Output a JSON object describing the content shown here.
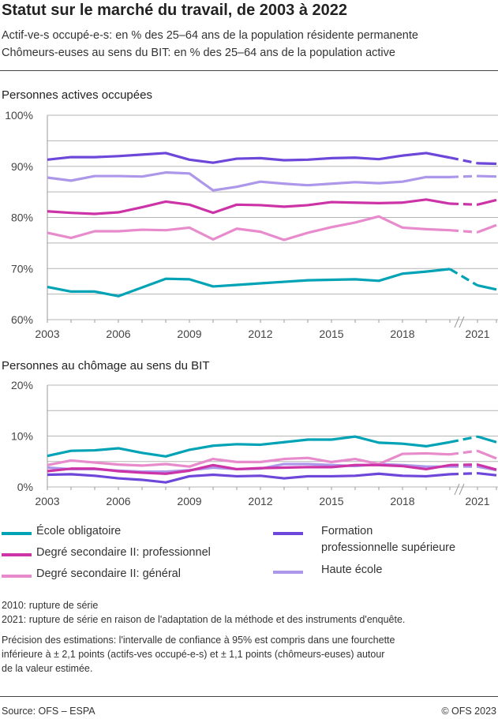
{
  "header": {
    "title": "Statut sur le marché du travail, de 2003 à 2022",
    "subtitle1": "Actif-ve-s occupé-e-s: en % des 25–64 ans de la population résidente permanente",
    "subtitle2": "Chômeurs-euses au sens du BIT: en % des 25–64 ans de la population active"
  },
  "legend": [
    {
      "label": "École obligatoire",
      "color": "#00a3b6"
    },
    {
      "label": "Degré secondaire II: professionnel",
      "color": "#cc33a6"
    },
    {
      "label": "Degré secondaire II: général",
      "color": "#e88bcd"
    },
    {
      "label": "Formation",
      "label2": "professionnelle supérieure",
      "color": "#6c47d9"
    },
    {
      "label": "Haute école",
      "color": "#ad97ea"
    }
  ],
  "notes": {
    "n1": "2010: rupture de série",
    "n2": "2021: rupture de série en raison de l'adaptation de la méthode et des instruments d'enquête.",
    "p1": "Précision des estimations: l'intervalle de confiance à 95% est compris dans une fourchette",
    "p2": "inférieure à ± 2,1 points (actifs-ves occupé-e-s) et ± 1,1 points (chômeurs-euses) autour",
    "p3": "de la valeur estimée."
  },
  "footer": {
    "source": "Source: OFS – ESPA",
    "copyright": "© OFS 2023"
  },
  "chart_data": [
    {
      "type": "line",
      "title": "Personnes actives occupées",
      "x": [
        2003,
        2004,
        2005,
        2006,
        2007,
        2008,
        2009,
        2010,
        2011,
        2012,
        2013,
        2014,
        2015,
        2016,
        2017,
        2018,
        2019,
        2020,
        2021,
        2022
      ],
      "xticks": [
        "2003",
        "2006",
        "2009",
        "2012",
        "2015",
        "2018",
        "2021"
      ],
      "yticks": [
        "60%",
        "70%",
        "80%",
        "90%",
        "100%"
      ],
      "ylim": [
        60,
        100
      ],
      "grid": true,
      "axis_break": "2020-2021",
      "series": [
        {
          "name": "École obligatoire",
          "values": [
            66.4,
            65.5,
            65.5,
            64.6,
            66.3,
            68.0,
            67.9,
            66.5,
            66.8,
            67.1,
            67.4,
            67.7,
            67.8,
            67.9,
            67.6,
            69.0,
            69.4,
            69.9,
            66.7,
            65.9
          ]
        },
        {
          "name": "Degré secondaire II: professionnel",
          "values": [
            81.2,
            80.9,
            80.7,
            81.0,
            82.0,
            83.1,
            82.5,
            80.9,
            82.5,
            82.4,
            82.1,
            82.4,
            83.0,
            82.9,
            82.8,
            82.9,
            83.5,
            82.7,
            82.5,
            83.4
          ]
        },
        {
          "name": "Degré secondaire II: général",
          "values": [
            77.0,
            76.0,
            77.3,
            77.3,
            77.6,
            77.5,
            78.0,
            75.7,
            77.8,
            77.2,
            75.6,
            77.0,
            78.1,
            79.0,
            80.2,
            78.0,
            77.7,
            77.5,
            77.1,
            78.5
          ]
        },
        {
          "name": "Formation professionnelle supérieure",
          "values": [
            91.3,
            91.8,
            91.8,
            92.0,
            92.3,
            92.6,
            91.3,
            90.7,
            91.5,
            91.6,
            91.2,
            91.3,
            91.6,
            91.7,
            91.4,
            92.1,
            92.6,
            91.7,
            90.6,
            90.5
          ]
        },
        {
          "name": "Haute école",
          "values": [
            87.8,
            87.2,
            88.1,
            88.1,
            88.0,
            88.8,
            88.6,
            85.3,
            86.0,
            87.0,
            86.6,
            86.3,
            86.6,
            86.9,
            86.7,
            87.0,
            87.9,
            87.9,
            88.1,
            88.0
          ]
        }
      ]
    },
    {
      "type": "line",
      "title": "Personnes au chômage au sens du BIT",
      "x": [
        2003,
        2004,
        2005,
        2006,
        2007,
        2008,
        2009,
        2010,
        2011,
        2012,
        2013,
        2014,
        2015,
        2016,
        2017,
        2018,
        2019,
        2020,
        2021,
        2022
      ],
      "xticks": [
        "2003",
        "2006",
        "2009",
        "2012",
        "2015",
        "2018",
        "2021"
      ],
      "yticks": [
        "0%",
        "10%",
        "20%"
      ],
      "ylim": [
        0,
        20
      ],
      "grid": true,
      "axis_break": "2020-2021",
      "series": [
        {
          "name": "École obligatoire",
          "values": [
            6.1,
            7.1,
            7.2,
            7.6,
            6.7,
            6.0,
            7.3,
            8.1,
            8.4,
            8.3,
            8.8,
            9.3,
            9.3,
            9.9,
            8.7,
            8.5,
            8.0,
            8.8,
            9.9,
            8.8
          ]
        },
        {
          "name": "Degré secondaire II: professionnel",
          "values": [
            3.1,
            3.6,
            3.6,
            3.1,
            2.8,
            2.6,
            3.2,
            4.3,
            3.5,
            3.7,
            3.8,
            3.9,
            3.9,
            4.3,
            4.3,
            4.1,
            3.5,
            4.3,
            4.4,
            3.4
          ]
        },
        {
          "name": "Degré secondaire II: général",
          "values": [
            4.3,
            5.2,
            4.8,
            4.4,
            4.2,
            4.5,
            4.0,
            5.5,
            4.9,
            4.9,
            5.5,
            5.7,
            4.9,
            5.5,
            4.5,
            6.5,
            6.6,
            6.4,
            7.1,
            5.6
          ]
        },
        {
          "name": "Formation professionnelle supérieure",
          "values": [
            2.4,
            2.5,
            2.2,
            1.7,
            1.4,
            0.9,
            2.1,
            2.4,
            2.1,
            2.2,
            1.7,
            2.1,
            2.1,
            2.2,
            2.6,
            2.2,
            2.1,
            2.5,
            2.7,
            2.3
          ]
        },
        {
          "name": "Haute école",
          "values": [
            3.8,
            3.5,
            3.5,
            3.2,
            3.0,
            3.0,
            3.3,
            3.8,
            3.5,
            3.6,
            4.5,
            4.5,
            4.3,
            4.1,
            4.5,
            4.3,
            4.0,
            4.0,
            4.0,
            3.3
          ]
        }
      ]
    }
  ]
}
